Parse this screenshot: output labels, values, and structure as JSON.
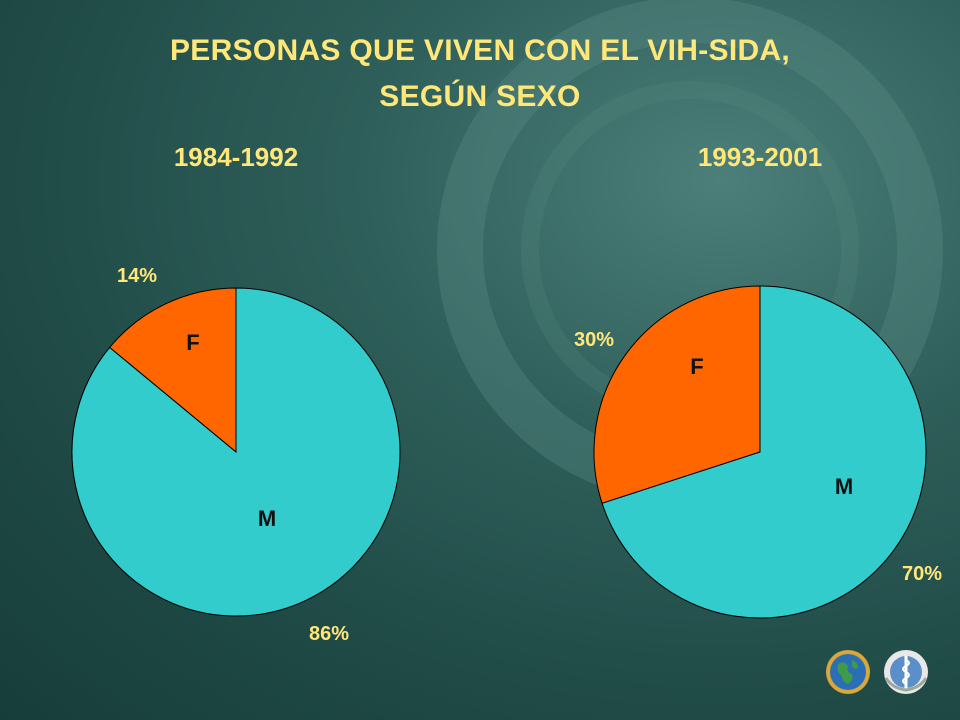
{
  "slide": {
    "title_line1": "PERSONAS QUE VIVEN CON EL VIH-SIDA,",
    "title_line2": "SEGÚN SEXO",
    "logos": [
      "globe-emblem-icon",
      "who-emblem-icon"
    ]
  },
  "colors": {
    "F": "#ff6600",
    "M": "#33cccc",
    "text": "#ffe77a"
  },
  "chart_data": [
    {
      "type": "pie",
      "title": "1984-1992",
      "categories": [
        "F",
        "M"
      ],
      "values": [
        14,
        86
      ],
      "value_labels": [
        "14%",
        "86%"
      ]
    },
    {
      "type": "pie",
      "title": "1993-2001",
      "categories": [
        "F",
        "M"
      ],
      "values": [
        30,
        70
      ],
      "value_labels": [
        "30%",
        "70%"
      ]
    }
  ]
}
